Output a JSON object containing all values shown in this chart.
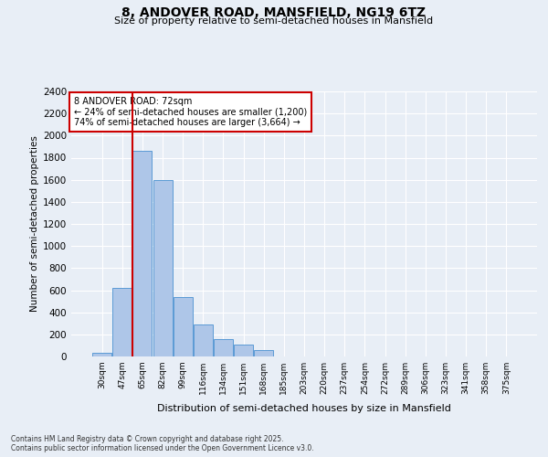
{
  "title1": "8, ANDOVER ROAD, MANSFIELD, NG19 6TZ",
  "title2": "Size of property relative to semi-detached houses in Mansfield",
  "xlabel": "Distribution of semi-detached houses by size in Mansfield",
  "ylabel": "Number of semi-detached properties",
  "categories": [
    "30sqm",
    "47sqm",
    "65sqm",
    "82sqm",
    "99sqm",
    "116sqm",
    "134sqm",
    "151sqm",
    "168sqm",
    "185sqm",
    "203sqm",
    "220sqm",
    "237sqm",
    "254sqm",
    "272sqm",
    "289sqm",
    "306sqm",
    "323sqm",
    "341sqm",
    "358sqm",
    "375sqm"
  ],
  "values": [
    30,
    620,
    1860,
    1600,
    540,
    290,
    160,
    105,
    60,
    0,
    0,
    0,
    0,
    0,
    0,
    0,
    0,
    0,
    0,
    0,
    0
  ],
  "property_sqm": 72,
  "vline_x_index": 2,
  "pct_smaller": 24,
  "pct_larger": 74,
  "count_smaller": 1200,
  "count_larger": 3664,
  "bar_color": "#aec6e8",
  "bar_edge_color": "#5b9bd5",
  "vline_color": "#cc0000",
  "annotation_box_color": "#cc0000",
  "ylim": [
    0,
    2400
  ],
  "yticks": [
    0,
    200,
    400,
    600,
    800,
    1000,
    1200,
    1400,
    1600,
    1800,
    2000,
    2200,
    2400
  ],
  "bg_color": "#e8eef6",
  "grid_color": "#d0d8e8",
  "footnote1": "Contains HM Land Registry data © Crown copyright and database right 2025.",
  "footnote2": "Contains public sector information licensed under the Open Government Licence v3.0."
}
